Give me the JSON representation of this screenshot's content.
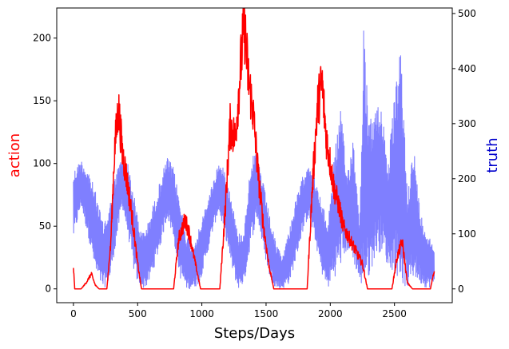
{
  "chart_data": {
    "type": "line",
    "xlabel": "Steps/Days",
    "xlim": [
      -130,
      2950
    ],
    "x_ticks": [
      0,
      500,
      1000,
      1500,
      2000,
      2500
    ],
    "left_axis": {
      "label": "action",
      "color": "#ff0000",
      "ylim": [
        -11,
        224
      ],
      "ticks": [
        0,
        50,
        100,
        150,
        200
      ]
    },
    "right_axis": {
      "label": "truth",
      "color": "#0000cc",
      "ylim": [
        -25,
        510
      ],
      "ticks": [
        0,
        100,
        200,
        300,
        400,
        500
      ]
    },
    "grid": false,
    "series": [
      {
        "axis": "left",
        "color": "#ff0000",
        "approx_shape": [
          [
            0,
            18
          ],
          [
            10,
            0
          ],
          [
            60,
            0
          ],
          [
            100,
            5
          ],
          [
            140,
            12
          ],
          [
            170,
            3
          ],
          [
            200,
            0
          ],
          [
            260,
            0
          ],
          [
            290,
            35
          ],
          [
            320,
            110
          ],
          [
            350,
            145
          ],
          [
            380,
            110
          ],
          [
            420,
            85
          ],
          [
            460,
            55
          ],
          [
            500,
            20
          ],
          [
            530,
            0
          ],
          [
            780,
            0
          ],
          [
            820,
            40
          ],
          [
            870,
            55
          ],
          [
            900,
            45
          ],
          [
            950,
            20
          ],
          [
            990,
            0
          ],
          [
            1140,
            0
          ],
          [
            1180,
            60
          ],
          [
            1220,
            130
          ],
          [
            1260,
            120
          ],
          [
            1300,
            175
          ],
          [
            1330,
            213
          ],
          [
            1360,
            170
          ],
          [
            1400,
            140
          ],
          [
            1440,
            90
          ],
          [
            1480,
            50
          ],
          [
            1520,
            20
          ],
          [
            1560,
            0
          ],
          [
            1820,
            0
          ],
          [
            1860,
            80
          ],
          [
            1900,
            145
          ],
          [
            1935,
            165
          ],
          [
            1970,
            120
          ],
          [
            2000,
            100
          ],
          [
            2030,
            80
          ],
          [
            2070,
            65
          ],
          [
            2100,
            50
          ],
          [
            2150,
            40
          ],
          [
            2200,
            30
          ],
          [
            2250,
            20
          ],
          [
            2290,
            0
          ],
          [
            2480,
            0
          ],
          [
            2520,
            25
          ],
          [
            2560,
            38
          ],
          [
            2600,
            5
          ],
          [
            2640,
            0
          ],
          [
            2780,
            0
          ],
          [
            2800,
            10
          ],
          [
            2810,
            14
          ]
        ]
      },
      {
        "axis": "right",
        "color": "#7f7fff",
        "approx_envelope": [
          [
            0,
            90,
            215
          ],
          [
            60,
            150,
            235
          ],
          [
            120,
            90,
            215
          ],
          [
            180,
            20,
            170
          ],
          [
            230,
            0,
            120
          ],
          [
            280,
            10,
            150
          ],
          [
            330,
            80,
            210
          ],
          [
            380,
            150,
            245
          ],
          [
            430,
            90,
            225
          ],
          [
            480,
            20,
            160
          ],
          [
            530,
            0,
            100
          ],
          [
            580,
            5,
            120
          ],
          [
            630,
            40,
            160
          ],
          [
            680,
            80,
            200
          ],
          [
            730,
            130,
            240
          ],
          [
            780,
            90,
            220
          ],
          [
            830,
            20,
            160
          ],
          [
            880,
            0,
            100
          ],
          [
            930,
            0,
            80
          ],
          [
            980,
            10,
            110
          ],
          [
            1030,
            50,
            150
          ],
          [
            1080,
            100,
            190
          ],
          [
            1130,
            140,
            230
          ],
          [
            1180,
            100,
            215
          ],
          [
            1230,
            40,
            170
          ],
          [
            1280,
            0,
            100
          ],
          [
            1330,
            10,
            110
          ],
          [
            1380,
            80,
            235
          ],
          [
            1430,
            130,
            250
          ],
          [
            1480,
            70,
            190
          ],
          [
            1530,
            20,
            130
          ],
          [
            1580,
            0,
            80
          ],
          [
            1630,
            0,
            60
          ],
          [
            1680,
            10,
            110
          ],
          [
            1730,
            50,
            160
          ],
          [
            1780,
            100,
            200
          ],
          [
            1830,
            130,
            235
          ],
          [
            1880,
            90,
            200
          ],
          [
            1930,
            30,
            160
          ],
          [
            1980,
            0,
            120
          ],
          [
            2030,
            20,
            240
          ],
          [
            2080,
            40,
            330
          ],
          [
            2130,
            70,
            210
          ],
          [
            2180,
            50,
            280
          ],
          [
            2230,
            10,
            120
          ],
          [
            2260,
            0,
            480
          ],
          [
            2300,
            20,
            300
          ],
          [
            2350,
            60,
            330
          ],
          [
            2400,
            70,
            340
          ],
          [
            2450,
            40,
            230
          ],
          [
            2500,
            30,
            350
          ],
          [
            2550,
            10,
            440
          ],
          [
            2600,
            0,
            180
          ],
          [
            2650,
            20,
            260
          ],
          [
            2700,
            10,
            140
          ],
          [
            2760,
            0,
            100
          ],
          [
            2810,
            10,
            80
          ]
        ]
      }
    ]
  }
}
